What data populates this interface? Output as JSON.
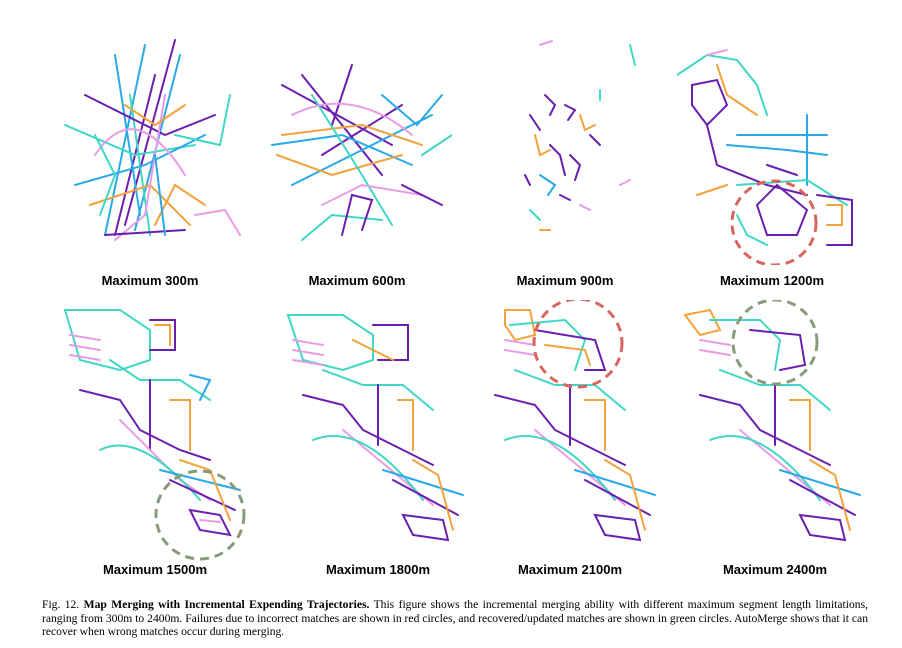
{
  "figure": {
    "panels": [
      {
        "label": "Maximum 300m",
        "circle": null
      },
      {
        "label": "Maximum 600m",
        "circle": null
      },
      {
        "label": "Maximum 900m",
        "circle": null
      },
      {
        "label": "Maximum 1200m",
        "circle": "red"
      },
      {
        "label": "Maximum 1500m",
        "circle": "green"
      },
      {
        "label": "Maximum 1800m",
        "circle": null
      },
      {
        "label": "Maximum 2100m",
        "circle": "red"
      },
      {
        "label": "Maximum 2400m",
        "circle": "green"
      }
    ],
    "colors": {
      "purple": "#6a1fb0",
      "cyan": "#29a9e8",
      "teal": "#3fd8c4",
      "orange": "#f2a33a",
      "pink": "#e89be6",
      "red_circle": "#d9665e",
      "green_circle": "#8a9a7a"
    }
  },
  "caption": {
    "prefix": "Fig. 12.",
    "title": "Map Merging with Incremental Expending Trajectories.",
    "body": "This figure shows the incremental merging ability with different maximum segment length limitations, ranging from 300m to 2400m. Failures due to incorrect matches are shown in red circles, and recovered/updated matches are shown in green circles. AutoMerge shows that it can recover when wrong matches occur during merging."
  }
}
